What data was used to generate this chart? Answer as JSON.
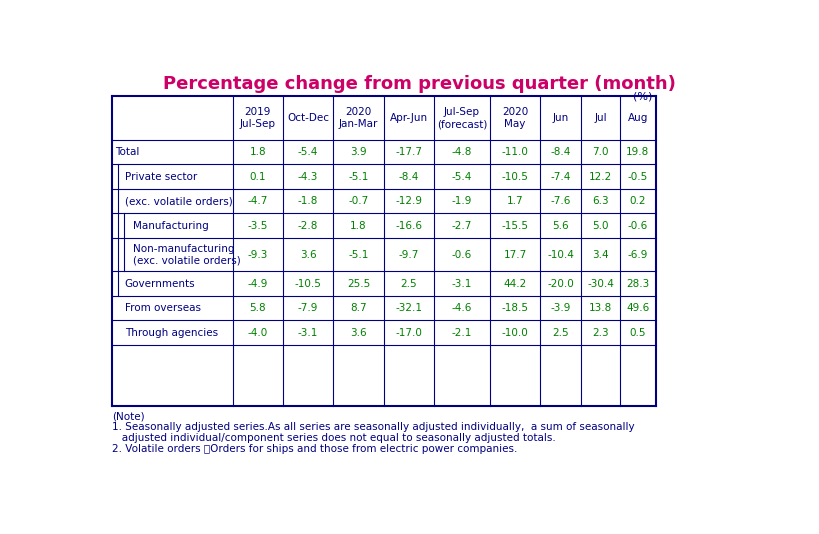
{
  "title": "Percentage change from previous quarter (month)",
  "title_color": "#CC0066",
  "unit_label": "(%)",
  "background_color": "#FFFFFF",
  "border_color": "#000080",
  "label_color": "#000080",
  "value_color": "#008000",
  "header_col0": "",
  "header_line1": [
    "",
    "2019",
    "",
    "2020",
    "",
    "",
    "2020",
    "",
    "",
    ""
  ],
  "header_line2": [
    "",
    "Jul-Sep",
    "Oct-Dec",
    "Jan-Mar",
    "Apr-Jun",
    "Jul-Sep",
    "May",
    "Jun",
    "Jul",
    "Aug"
  ],
  "header_line3": [
    "",
    "",
    "",
    "",
    "",
    "(forecast)",
    "",
    "",
    "",
    ""
  ],
  "row_labels": [
    "Total",
    "Private sector",
    "(exc. volatile orders)",
    "Manufacturing",
    "Non-manufacturing\n(exc. volatile orders)",
    "Governments",
    "From overseas",
    "Through agencies"
  ],
  "indent_levels": [
    0,
    1,
    1,
    2,
    2,
    1,
    1,
    1
  ],
  "data": [
    [
      1.8,
      -5.4,
      3.9,
      -17.7,
      -4.8,
      -11.0,
      -8.4,
      7.0,
      19.8
    ],
    [
      0.1,
      -4.3,
      -5.1,
      -8.4,
      -5.4,
      -10.5,
      -7.4,
      12.2,
      -0.5
    ],
    [
      -4.7,
      -1.8,
      -0.7,
      -12.9,
      -1.9,
      1.7,
      -7.6,
      6.3,
      0.2
    ],
    [
      -3.5,
      -2.8,
      1.8,
      -16.6,
      -2.7,
      -15.5,
      5.6,
      5.0,
      -0.6
    ],
    [
      -9.3,
      3.6,
      -5.1,
      -9.7,
      -0.6,
      17.7,
      -10.4,
      3.4,
      -6.9
    ],
    [
      -4.9,
      -10.5,
      25.5,
      2.5,
      -3.1,
      44.2,
      -20.0,
      -30.4,
      28.3
    ],
    [
      5.8,
      -7.9,
      8.7,
      -32.1,
      -4.6,
      -18.5,
      -3.9,
      13.8,
      49.6
    ],
    [
      -4.0,
      -3.1,
      3.6,
      -17.0,
      -2.1,
      -10.0,
      2.5,
      2.3,
      0.5
    ]
  ],
  "note_line0": "(Note)",
  "note_line1": "1. Seasonally adjusted series.As all series are seasonally adjusted individually,  a sum of seasonally",
  "note_line2": "   adjusted individual/component series does not equal to seasonally adjusted totals.",
  "note_line3": "2. Volatile orders ：Orders for ships and those from electric power companies."
}
